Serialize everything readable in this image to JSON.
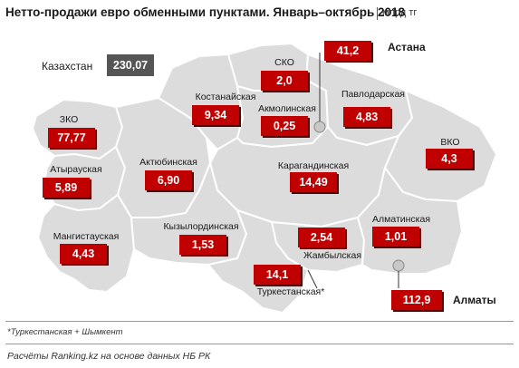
{
  "title": "Нетто-продажи евро обменными пунктами. Январь–октябрь 2018",
  "unit": "млрд тг",
  "total": {
    "label": "Казахстан",
    "value": "230,07"
  },
  "regions": [
    {
      "id": "zko",
      "name": "ЗКО",
      "value": "77,77"
    },
    {
      "id": "atyrau",
      "name": "Атырауская",
      "value": "5,89"
    },
    {
      "id": "mangystau",
      "name": "Мангистауская",
      "value": "4,43"
    },
    {
      "id": "aktobe",
      "name": "Актюбинская",
      "value": "6,90"
    },
    {
      "id": "kostanay",
      "name": "Костанайская",
      "value": "9,34"
    },
    {
      "id": "sko",
      "name": "СКО",
      "value": "2,0"
    },
    {
      "id": "akmola",
      "name": "Акмолинская",
      "value": "0,25"
    },
    {
      "id": "pavlodar",
      "name": "Павлодарская",
      "value": "4,83"
    },
    {
      "id": "vko",
      "name": "ВКО",
      "value": "4,3"
    },
    {
      "id": "karaganda",
      "name": "Карагандинская",
      "value": "14,49"
    },
    {
      "id": "kyzylorda",
      "name": "Кызылординская",
      "value": "1,53"
    },
    {
      "id": "zhambyl",
      "name": "Жамбылская",
      "value": "2,54"
    },
    {
      "id": "almaty_obl",
      "name": "Алматинская",
      "value": "1,01"
    },
    {
      "id": "turkestan",
      "name": "Туркестанская*",
      "value": "14,1"
    }
  ],
  "cities": [
    {
      "id": "astana",
      "name": "Астана",
      "value": "41,2"
    },
    {
      "id": "almaty",
      "name": "Алматы",
      "value": "112,9"
    }
  ],
  "footnote": "*Туркестанская + Шымкент",
  "source": "Расчёты Ranking.kz на основе данных НБ РК",
  "colors": {
    "region_fill": "#dcdcdc",
    "border": "#ffffff",
    "value_box": "#c00000",
    "total_box": "#555555"
  }
}
